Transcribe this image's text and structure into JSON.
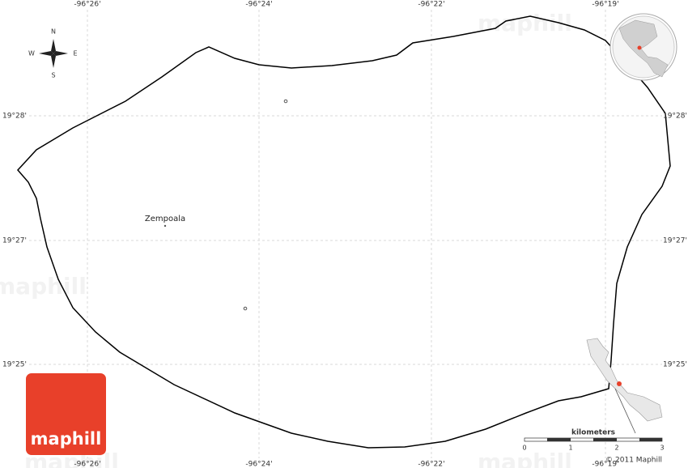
{
  "map": {
    "longitude_labels": [
      "-96°26'",
      "-96°24'",
      "-96°22'",
      "-96°19'"
    ],
    "latitude_labels": [
      "19°28'",
      "19°27'",
      "19°25'"
    ],
    "compass": {
      "n": "N",
      "s": "S",
      "e": "E",
      "w": "W"
    },
    "places": [
      "Zempoala"
    ],
    "scale": {
      "unit": "kilometers",
      "ticks": [
        "0",
        "1",
        "2",
        "3"
      ]
    },
    "logo": "maphill",
    "copyright": "© 2011 Maphill"
  }
}
